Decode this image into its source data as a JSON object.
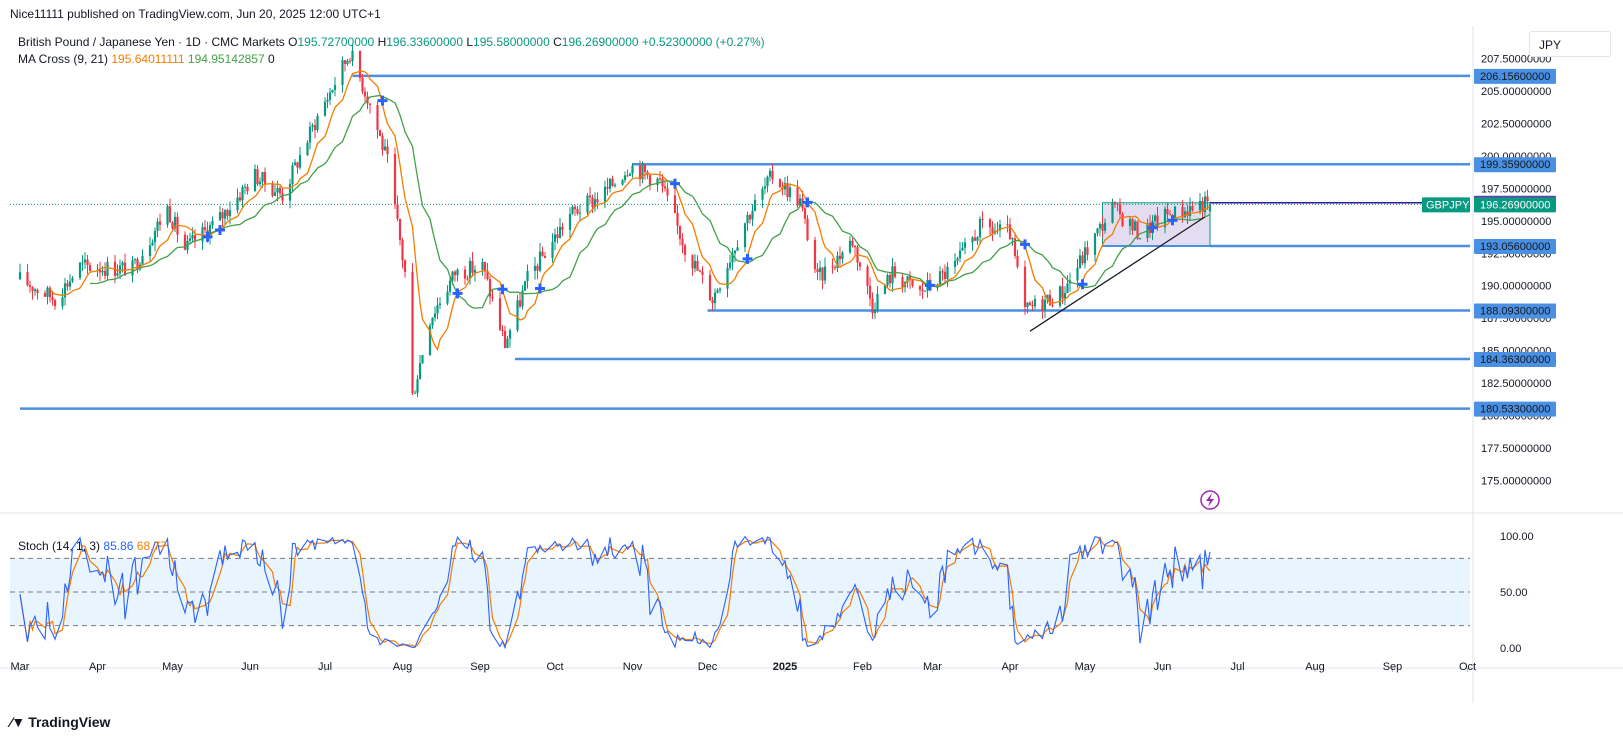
{
  "publisher_line": "Nice11111 published on TradingView.com, Jun 20, 2025 12:00 UTC+1",
  "currency": "JPY",
  "legend": {
    "symbol_line": "British Pound / Japanese Yen · 1D · CMC Markets",
    "o_label": "O",
    "o_value": "195.72700000",
    "h_label": "H",
    "h_value": "196.33600000",
    "l_label": "L",
    "l_value": "195.58000000",
    "c_label": "C",
    "c_value": "196.26900000",
    "change": "+0.52300000 (+0.27%)",
    "ma_label": "MA Cross (9, 21)",
    "ma_fast": "195.64011111",
    "ma_slow": "194.95142857",
    "ma_extra": "0"
  },
  "stoch_legend": {
    "label": "Stoch (14, 1, 3)",
    "k": "85.86",
    "d": "68.77"
  },
  "footer": {
    "brand": "TradingView"
  },
  "colors": {
    "up": "#089981",
    "down": "#f23645",
    "level": "#4a90e2",
    "ma_fast": "#f57c00",
    "ma_slow": "#43a047",
    "stoch_k": "#2962ff",
    "stoch_d": "#f57c00",
    "current_price_bg": "#089981",
    "ask_bg": "#673ab7",
    "range_box": "#b39ddb"
  },
  "chart_data": {
    "type": "candlestick",
    "symbol": "GBPJPY",
    "ylim": [
      172.5,
      210.0
    ],
    "y_ticks": [
      "175.00000000",
      "177.50000000",
      "180.00000000",
      "182.50000000",
      "185.00000000",
      "187.50000000",
      "190.00000000",
      "192.50000000",
      "195.00000000",
      "197.50000000",
      "200.00000000",
      "202.50000000",
      "205.00000000",
      "207.50000000"
    ],
    "x_ticks": [
      "Mar",
      "Apr",
      "May",
      "Jun",
      "Jul",
      "Aug",
      "Sep",
      "Oct",
      "Nov",
      "Dec",
      "2025",
      "Feb",
      "Mar",
      "Apr",
      "May",
      "Jun",
      "Jul",
      "Aug",
      "Sep",
      "Oct"
    ],
    "horizontal_levels": [
      {
        "value": 206.156,
        "label": "206.15600000",
        "from": "2024-07-12"
      },
      {
        "value": 199.359,
        "label": "199.35900000",
        "from": "2024-11-01"
      },
      {
        "value": 193.056,
        "label": "193.05600000",
        "from": "2025-06-20"
      },
      {
        "value": 188.093,
        "label": "188.09300000",
        "from": "2024-12-01"
      },
      {
        "value": 184.363,
        "label": "184.36300000",
        "from": "2024-09-15"
      },
      {
        "value": 180.533,
        "label": "180.53300000",
        "from": "2024-03-01"
      }
    ],
    "ask_price": {
      "value": 196.387,
      "label": "196.38700000"
    },
    "last_price": {
      "value": 196.269,
      "label": "196.26900000",
      "symbol_tag": "GBPJPY"
    },
    "anchors": [
      [
        "2024-03-01",
        190.5
      ],
      [
        "2024-03-15",
        189.0
      ],
      [
        "2024-03-25",
        191.5
      ],
      [
        "2024-04-15",
        191.3
      ],
      [
        "2024-04-29",
        196.0
      ],
      [
        "2024-05-06",
        192.8
      ],
      [
        "2024-05-20",
        195.2
      ],
      [
        "2024-06-03",
        198.5
      ],
      [
        "2024-06-14",
        197.0
      ],
      [
        "2024-06-28",
        203.0
      ],
      [
        "2024-07-11",
        208.0
      ],
      [
        "2024-07-19",
        204.0
      ],
      [
        "2024-07-26",
        199.5
      ],
      [
        "2024-08-02",
        191.0
      ],
      [
        "2024-08-05",
        181.5
      ],
      [
        "2024-08-12",
        187.5
      ],
      [
        "2024-08-22",
        191.0
      ],
      [
        "2024-09-02",
        191.5
      ],
      [
        "2024-09-11",
        185.5
      ],
      [
        "2024-09-20",
        190.5
      ],
      [
        "2024-10-07",
        195.5
      ],
      [
        "2024-10-20",
        197.0
      ],
      [
        "2024-10-31",
        199.3
      ],
      [
        "2024-11-12",
        198.0
      ],
      [
        "2024-11-22",
        193.0
      ],
      [
        "2024-12-03",
        189.0
      ],
      [
        "2024-12-16",
        195.0
      ],
      [
        "2024-12-27",
        198.5
      ],
      [
        "2025-01-07",
        196.5
      ],
      [
        "2025-01-14",
        190.5
      ],
      [
        "2025-01-28",
        193.5
      ],
      [
        "2025-02-05",
        188.5
      ],
      [
        "2025-02-13",
        191.0
      ],
      [
        "2025-02-24",
        189.5
      ],
      [
        "2025-03-10",
        191.5
      ],
      [
        "2025-03-20",
        194.5
      ],
      [
        "2025-04-01",
        194.0
      ],
      [
        "2025-04-07",
        188.0
      ],
      [
        "2025-04-11",
        188.5
      ],
      [
        "2025-04-22",
        189.5
      ],
      [
        "2025-05-01",
        192.5
      ],
      [
        "2025-05-12",
        196.0
      ],
      [
        "2025-05-23",
        194.0
      ],
      [
        "2025-06-03",
        195.5
      ],
      [
        "2025-06-10",
        195.8
      ],
      [
        "2025-06-16",
        196.3
      ],
      [
        "2025-06-20",
        196.27
      ]
    ],
    "stochastic": {
      "k_last": 85.86,
      "d_last": 68.77,
      "ylim": [
        0,
        100
      ],
      "levels": [
        80,
        50,
        20
      ],
      "y_ticks": [
        "100.00",
        "50.00",
        "0.00"
      ]
    }
  }
}
